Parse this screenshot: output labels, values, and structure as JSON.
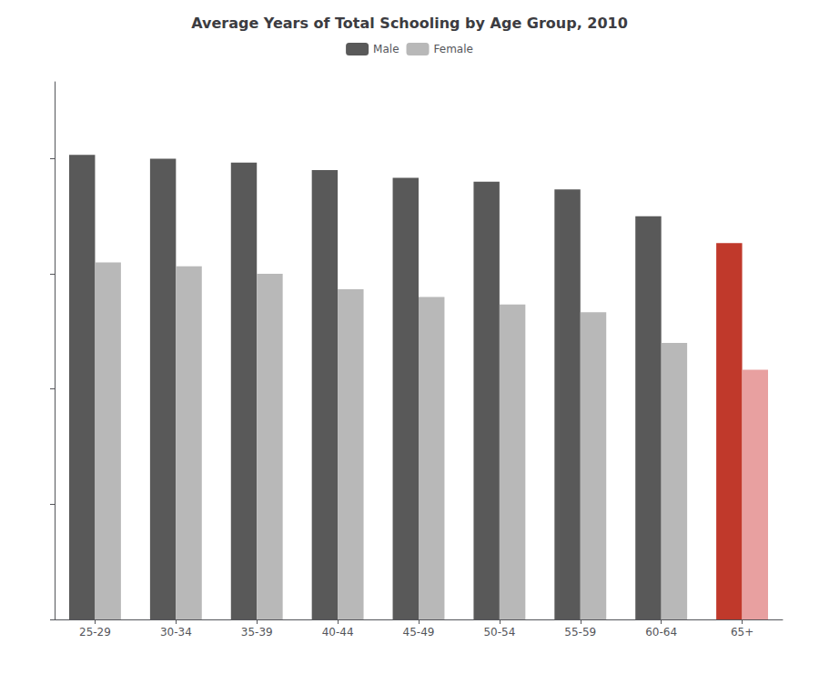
{
  "chart_data": {
    "type": "bar",
    "title": "Average Years of Total Schooling by Age Group, 2010",
    "categories": [
      "25-29",
      "30-34",
      "35-39",
      "40-44",
      "45-49",
      "50-54",
      "55-59",
      "60-64",
      "65+"
    ],
    "series": [
      {
        "name": "Male",
        "color": "#595959",
        "colors": [
          "#595959",
          "#595959",
          "#595959",
          "#595959",
          "#595959",
          "#595959",
          "#595959",
          "#595959",
          "#c0392b"
        ],
        "values": [
          12.1,
          12.0,
          11.9,
          11.7,
          11.5,
          11.4,
          11.2,
          10.5,
          9.8
        ]
      },
      {
        "name": "Female",
        "color": "#b8b8b8",
        "colors": [
          "#b8b8b8",
          "#b8b8b8",
          "#b8b8b8",
          "#b8b8b8",
          "#b8b8b8",
          "#b8b8b8",
          "#b8b8b8",
          "#b8b8b8",
          "#e8a0a0"
        ],
        "values": [
          9.3,
          9.2,
          9.0,
          8.6,
          8.4,
          8.2,
          8.0,
          7.2,
          6.5
        ]
      }
    ],
    "ylim": [
      0,
      14
    ],
    "yticks": [
      0,
      3,
      6,
      9,
      12
    ],
    "grid": false,
    "legend": "top",
    "tick_labels": "x"
  }
}
